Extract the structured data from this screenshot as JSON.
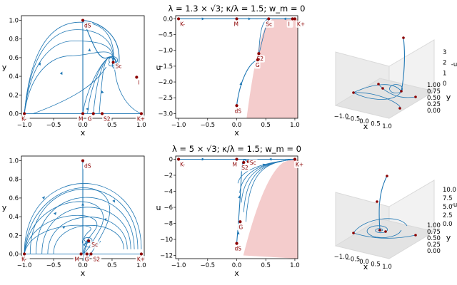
{
  "colors": {
    "trajectory": "#1f77b4",
    "fixed_point": "#8b0000",
    "forbidden_region": "#f4cccc",
    "pane": "#ebebeb"
  },
  "chart_data": [
    {
      "type": "line",
      "panel": "row1-left",
      "xlabel": "x",
      "ylabel": "y",
      "xlim": [
        -1.05,
        1.05
      ],
      "ylim": [
        -0.05,
        1.05
      ],
      "xticks": [
        "-1.0",
        "-0.5",
        "0.0",
        "0.5",
        "1.0"
      ],
      "yticks": [
        "0.0",
        "0.2",
        "0.4",
        "0.6",
        "0.8",
        "1.0"
      ],
      "points": [
        {
          "label": "K-",
          "x": -1.0,
          "y": 0.0
        },
        {
          "label": "M",
          "x": 0.0,
          "y": 0.0
        },
        {
          "label": "G",
          "x": 0.18,
          "y": 0.0
        },
        {
          "label": "S2",
          "x": 0.33,
          "y": 0.0
        },
        {
          "label": "K+",
          "x": 1.0,
          "y": 0.0
        },
        {
          "label": "dS",
          "x": 0.0,
          "y": 1.0
        },
        {
          "label": "Sc",
          "x": 0.52,
          "y": 0.55
        },
        {
          "label": "I",
          "x": 0.92,
          "y": 0.39
        }
      ]
    },
    {
      "type": "line",
      "panel": "row1-middle",
      "title": "λ = 1.3 × √3; κ/λ = 1.5; w_m = 0",
      "xlabel": "x",
      "ylabel": "u",
      "xlim": [
        -1.05,
        1.05
      ],
      "ylim": [
        -3.15,
        0.1
      ],
      "xticks": [
        "-1.0",
        "-0.5",
        "0.0",
        "0.5",
        "1.0"
      ],
      "yticks": [
        "0.0",
        "-0.5",
        "-1.0",
        "-1.5",
        "-2.0",
        "-2.5",
        "-3.0"
      ],
      "points": [
        {
          "label": "K-",
          "x": -1.0,
          "y": 0.0
        },
        {
          "label": "M",
          "x": 0.0,
          "y": 0.0
        },
        {
          "label": "Sc",
          "x": 0.55,
          "y": 0.0
        },
        {
          "label": "I",
          "x": 0.96,
          "y": 0.0
        },
        {
          "label": "K+",
          "x": 1.0,
          "y": 0.0
        },
        {
          "label": "S2",
          "x": 0.38,
          "y": -1.1
        },
        {
          "label": "G",
          "x": 0.36,
          "y": -1.3
        },
        {
          "label": "dS",
          "x": 0.0,
          "y": -2.75
        }
      ]
    },
    {
      "type": "line",
      "panel": "row2-left",
      "xlabel": "x",
      "ylabel": "y",
      "xlim": [
        -1.05,
        1.05
      ],
      "ylim": [
        -0.05,
        1.05
      ],
      "xticks": [
        "-1.0",
        "-0.5",
        "0.0",
        "0.5",
        "1.0"
      ],
      "yticks": [
        "0.0",
        "0.2",
        "0.4",
        "0.6",
        "0.8",
        "1.0"
      ],
      "points": [
        {
          "label": "K-",
          "x": -1.0,
          "y": 0.0
        },
        {
          "label": "M",
          "x": -0.03,
          "y": 0.0
        },
        {
          "label": "G",
          "x": 0.07,
          "y": 0.0
        },
        {
          "label": "S2",
          "x": 0.14,
          "y": 0.0
        },
        {
          "label": "K+",
          "x": 1.0,
          "y": 0.0
        },
        {
          "label": "dS",
          "x": 0.0,
          "y": 1.0
        },
        {
          "label": "Sc",
          "x": 0.1,
          "y": 0.14
        }
      ]
    },
    {
      "type": "line",
      "panel": "row2-middle",
      "title": "λ = 5 × √3; κ/λ = 1.5; w_m = 0",
      "xlabel": "x",
      "ylabel": "u",
      "xlim": [
        -1.05,
        1.05
      ],
      "ylim": [
        -12.4,
        0.4
      ],
      "xticks": [
        "-1.0",
        "-0.5",
        "0.0",
        "0.5",
        "1.0"
      ],
      "yticks": [
        "0",
        "-2",
        "-4",
        "-6",
        "-8",
        "-10",
        "-12"
      ],
      "points": [
        {
          "label": "K-",
          "x": -1.0,
          "y": 0.0
        },
        {
          "label": "M",
          "x": 0.0,
          "y": 0.0
        },
        {
          "label": "S2",
          "x": 0.12,
          "y": -0.4
        },
        {
          "label": "Sc",
          "x": 0.2,
          "y": -0.3
        },
        {
          "label": "K+",
          "x": 1.0,
          "y": 0.0
        },
        {
          "label": "G",
          "x": 0.06,
          "y": -7.8
        },
        {
          "label": "dS",
          "x": 0.0,
          "y": -10.5
        }
      ]
    },
    {
      "type": "line",
      "panel": "row1-right-3d",
      "xlabel": "x",
      "ylabel": "y",
      "zlabel": "-u",
      "xticks": [
        "-1.0",
        "-0.5",
        "0.0",
        "0.5",
        "1.0"
      ],
      "yticks": [
        "0.00",
        "0.25",
        "0.50",
        "0.75",
        "1.00"
      ],
      "zticks": [
        "0",
        "1",
        "2",
        "3"
      ]
    },
    {
      "type": "line",
      "panel": "row2-right-3d",
      "xlabel": "x",
      "ylabel": "y",
      "zlabel": "-u",
      "xticks": [
        "-1.0",
        "-0.5",
        "0.0",
        "0.5",
        "1.0"
      ],
      "yticks": [
        "0.00",
        "0.25",
        "0.50",
        "0.75",
        "1.00"
      ],
      "zticks": [
        "0.0",
        "2.5",
        "5.0",
        "7.5",
        "10.0"
      ]
    }
  ]
}
